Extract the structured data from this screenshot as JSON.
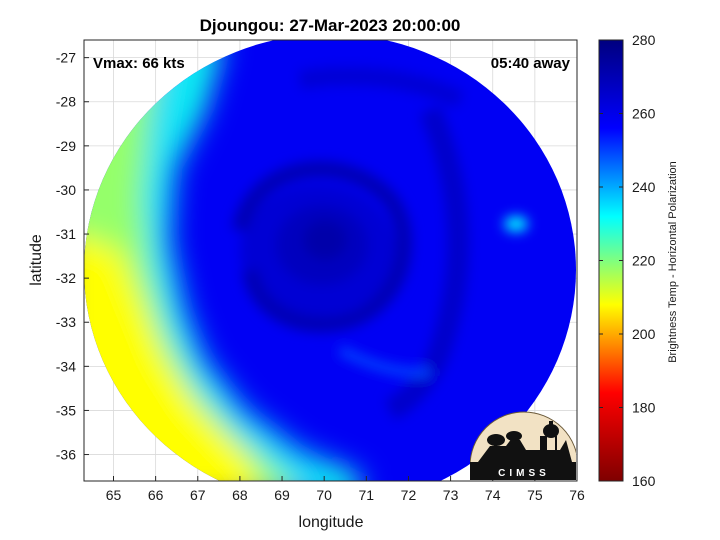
{
  "chart_data": {
    "type": "heatmap",
    "title": "Djoungou: 27-Mar-2023 20:00:00",
    "xlabel": "longitude",
    "ylabel": "latitude",
    "xlim": [
      64.3,
      76
    ],
    "ylim": [
      -36.6,
      -26.6
    ],
    "xticks": [
      "65",
      "66",
      "67",
      "68",
      "69",
      "70",
      "71",
      "72",
      "73",
      "74",
      "75",
      "76"
    ],
    "yticks": [
      "-27",
      "-28",
      "-29",
      "-30",
      "-31",
      "-32",
      "-33",
      "-34",
      "-35",
      "-36"
    ],
    "grid": true,
    "annotations": {
      "vmax": "Vmax: 66 kts",
      "away": "05:40 away"
    },
    "colorbar": {
      "label": "Brightness Temp - Horizontal Polarization",
      "range": [
        160,
        280
      ],
      "ticks": [
        "280",
        "260",
        "240",
        "220",
        "200",
        "180",
        "160"
      ],
      "colormap": [
        "#7f0000",
        "#ff0000",
        "#ffff00",
        "#00ffff",
        "#0000ff",
        "#00007f"
      ]
    },
    "swath": {
      "center_lon": 70.2,
      "center_lat": -31.0,
      "storm_center_lon": 70.0,
      "storm_center_lat": -31.1,
      "storm_min_temp": 272,
      "background_temp": 258,
      "edge_band_temp": 208
    },
    "logo": "CIMSS"
  }
}
